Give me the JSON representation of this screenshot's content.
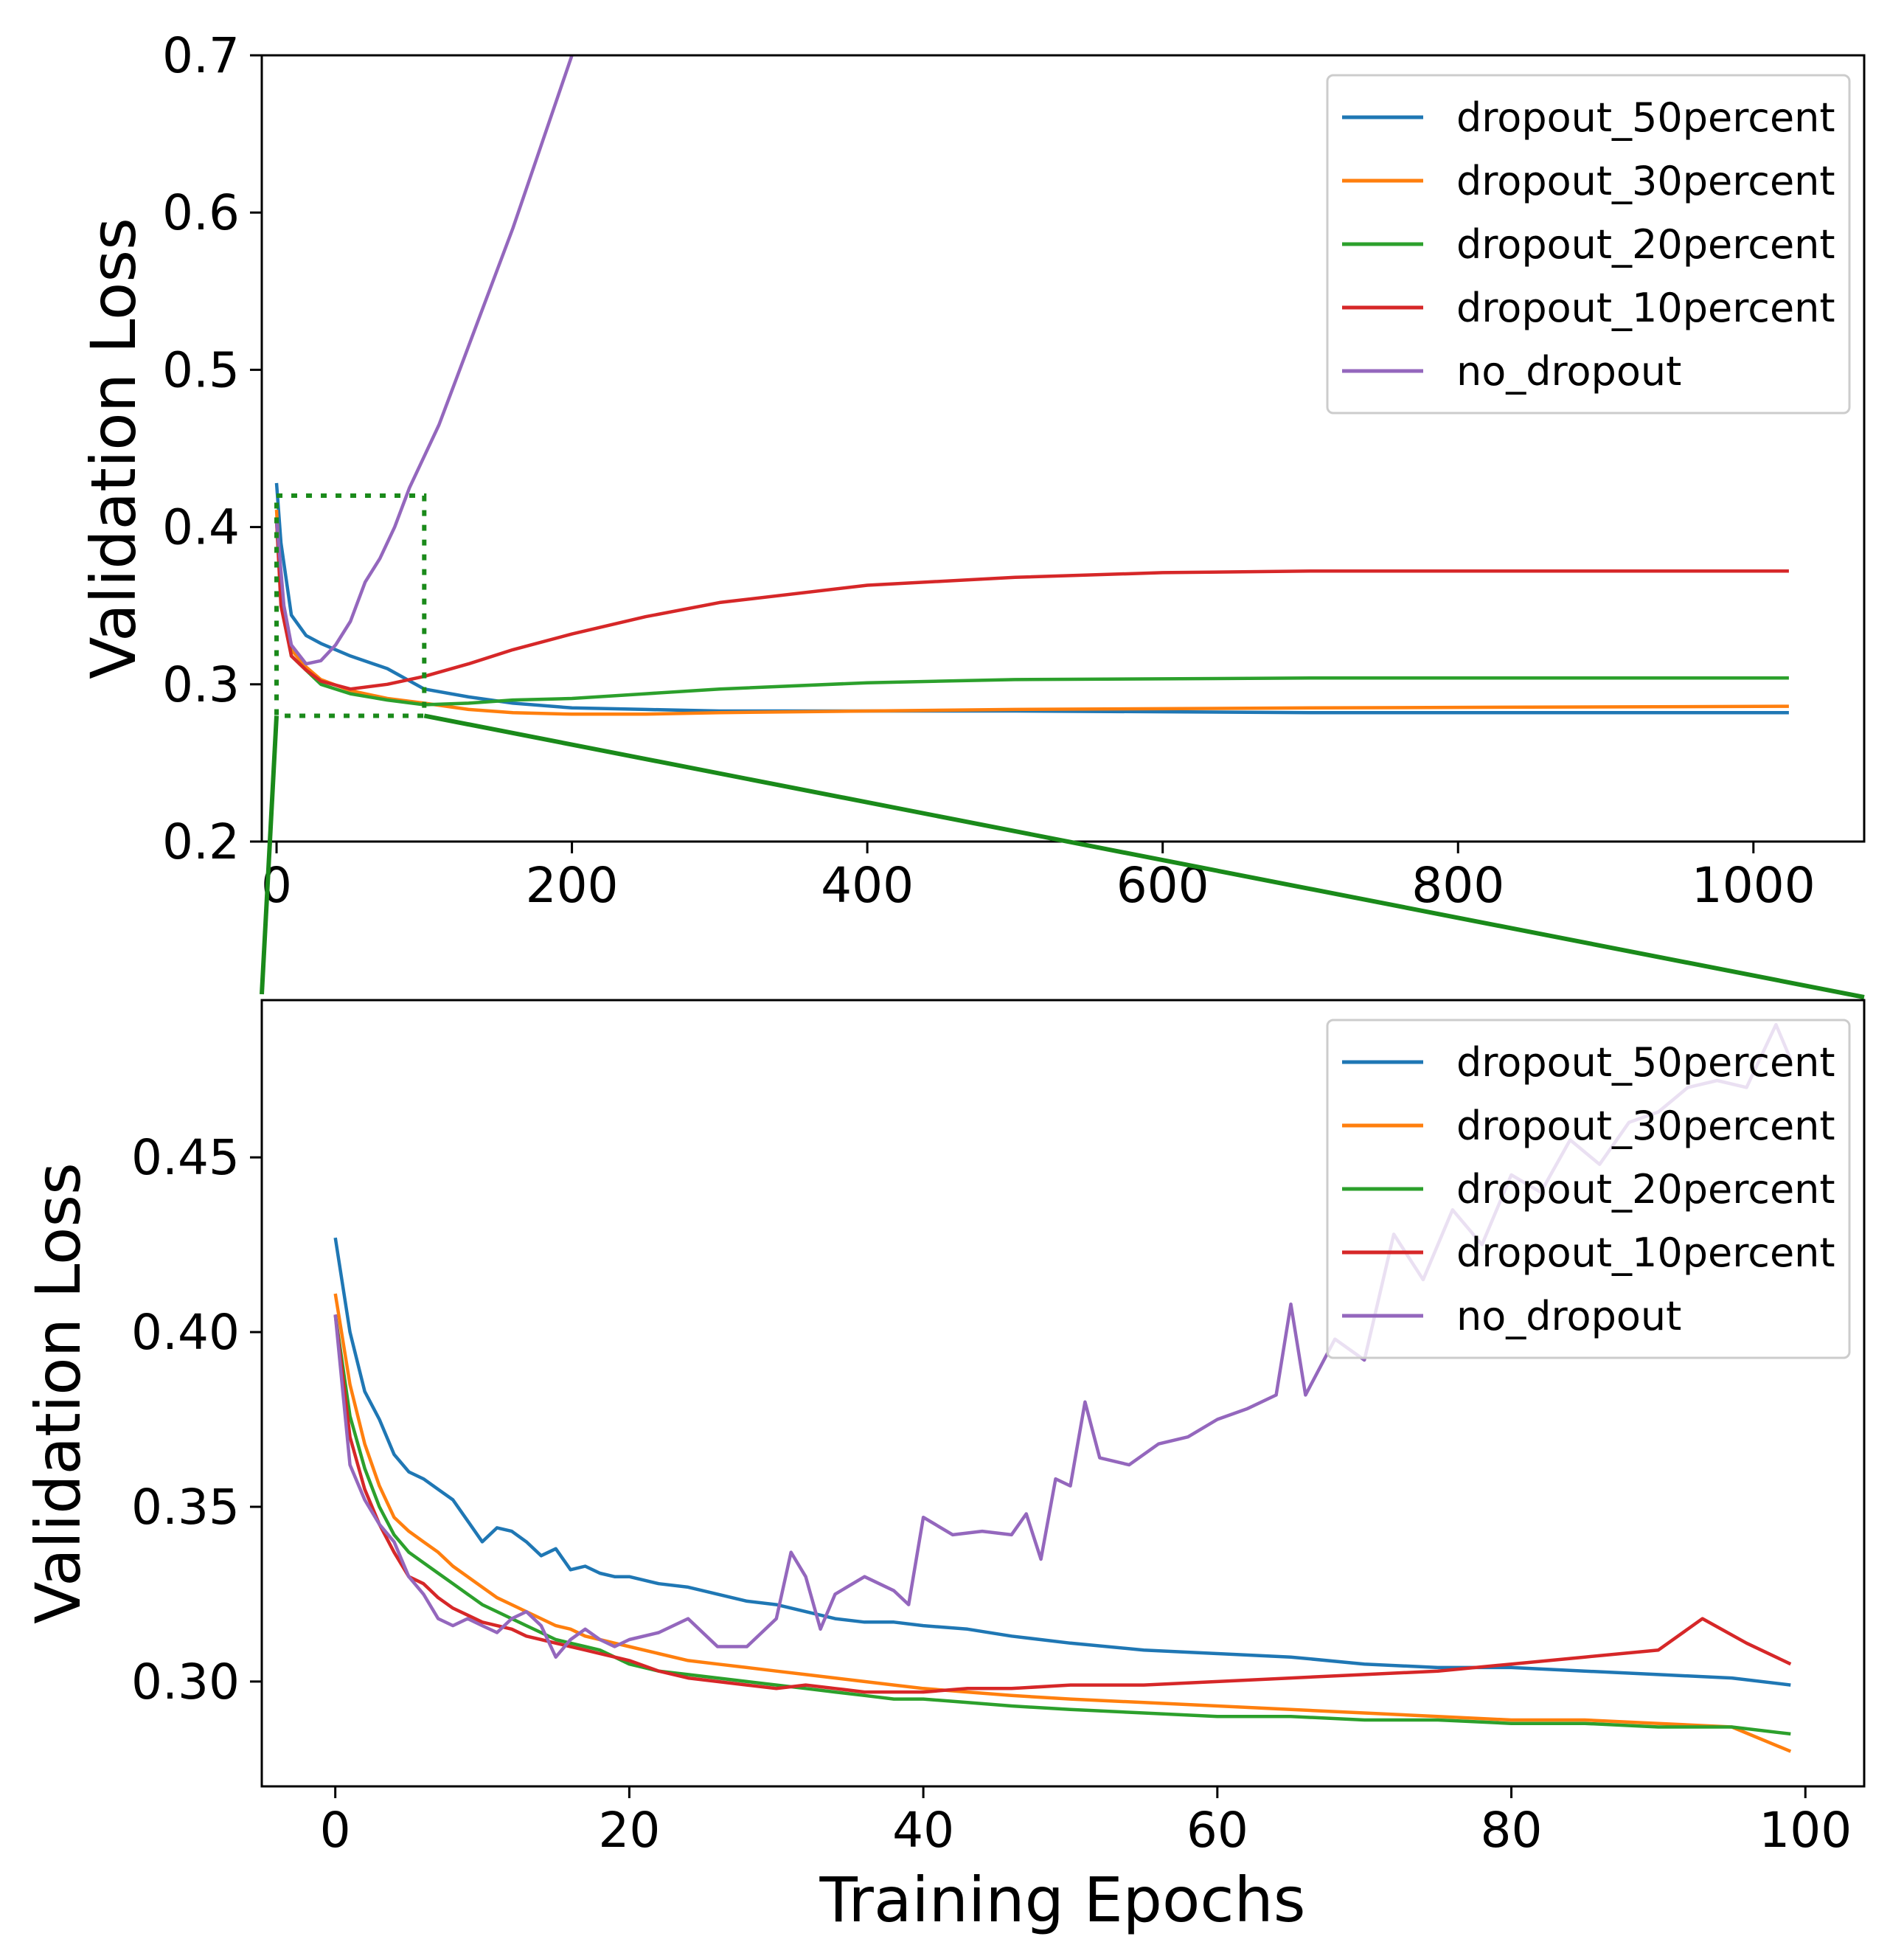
{
  "colors": {
    "dropout_50percent": "#1f77b4",
    "dropout_30percent": "#ff7f0e",
    "dropout_20percent": "#2ca02c",
    "dropout_10percent": "#d62728",
    "no_dropout": "#9467bd",
    "zoom_indicator": "#1a8a1a"
  },
  "chart_data": [
    {
      "type": "line",
      "panel": "top",
      "xlabel": "",
      "ylabel": "Validation Loss",
      "xlim": [
        -10,
        1075
      ],
      "ylim": [
        0.2,
        0.7
      ],
      "xticks": [
        0,
        200,
        400,
        600,
        800,
        1000
      ],
      "xtick_labels": [
        "0",
        "200",
        "400",
        "600",
        "800",
        "1000"
      ],
      "yticks": [
        0.2,
        0.3,
        0.4,
        0.5,
        0.6,
        0.7
      ],
      "ytick_labels": [
        "0.2",
        "0.3",
        "0.4",
        "0.5",
        "0.6",
        "0.7"
      ],
      "legend_position": "top-right",
      "zoom_box": {
        "x": [
          0,
          100
        ],
        "y": [
          0.28,
          0.42
        ]
      },
      "series": [
        {
          "name": "dropout_50percent",
          "key": "dropout_50percent",
          "x": [
            0,
            3,
            10,
            20,
            30,
            50,
            75,
            100,
            130,
            160,
            200,
            250,
            300,
            400,
            500,
            700,
            1024
          ],
          "y": [
            0.428,
            0.39,
            0.344,
            0.331,
            0.326,
            0.318,
            0.31,
            0.297,
            0.292,
            0.288,
            0.285,
            0.284,
            0.283,
            0.283,
            0.283,
            0.282,
            0.282
          ]
        },
        {
          "name": "dropout_30percent",
          "key": "dropout_30percent",
          "x": [
            0,
            3,
            10,
            20,
            30,
            50,
            75,
            100,
            130,
            160,
            200,
            250,
            300,
            400,
            500,
            700,
            1024
          ],
          "y": [
            0.411,
            0.36,
            0.322,
            0.311,
            0.303,
            0.296,
            0.291,
            0.288,
            0.284,
            0.282,
            0.281,
            0.281,
            0.282,
            0.283,
            0.284,
            0.285,
            0.286
          ]
        },
        {
          "name": "dropout_20percent",
          "key": "dropout_20percent",
          "x": [
            0,
            3,
            10,
            20,
            30,
            50,
            75,
            100,
            130,
            160,
            200,
            250,
            300,
            400,
            500,
            700,
            1024
          ],
          "y": [
            0.405,
            0.355,
            0.318,
            0.309,
            0.3,
            0.294,
            0.29,
            0.287,
            0.288,
            0.29,
            0.291,
            0.294,
            0.297,
            0.301,
            0.303,
            0.304,
            0.304
          ]
        },
        {
          "name": "dropout_10percent",
          "key": "dropout_10percent",
          "x": [
            0,
            3,
            10,
            20,
            30,
            50,
            75,
            100,
            130,
            160,
            200,
            250,
            300,
            400,
            500,
            600,
            700,
            1024
          ],
          "y": [
            0.405,
            0.35,
            0.318,
            0.309,
            0.302,
            0.297,
            0.3,
            0.305,
            0.313,
            0.322,
            0.332,
            0.343,
            0.352,
            0.363,
            0.368,
            0.371,
            0.372,
            0.372
          ]
        },
        {
          "name": "no_dropout",
          "key": "no_dropout",
          "x": [
            0,
            5,
            10,
            20,
            30,
            40,
            50,
            60,
            70,
            80,
            90,
            100,
            110,
            120,
            140,
            160,
            180,
            200
          ],
          "y": [
            0.405,
            0.35,
            0.325,
            0.313,
            0.315,
            0.325,
            0.34,
            0.365,
            0.38,
            0.4,
            0.425,
            0.445,
            0.465,
            0.49,
            0.54,
            0.59,
            0.645,
            0.7
          ]
        }
      ]
    },
    {
      "type": "line",
      "panel": "bottom",
      "xlabel": "Training Epochs",
      "ylabel": "Validation Loss",
      "xlim": [
        -5,
        104
      ],
      "ylim": [
        0.27,
        0.495
      ],
      "xticks": [
        0,
        20,
        40,
        60,
        80,
        100
      ],
      "xtick_labels": [
        "0",
        "20",
        "40",
        "60",
        "80",
        "100"
      ],
      "yticks": [
        0.3,
        0.35,
        0.4,
        0.45
      ],
      "ytick_labels": [
        "0.30",
        "0.35",
        "0.40",
        "0.45"
      ],
      "legend_position": "top-right",
      "series": [
        {
          "name": "dropout_50percent",
          "key": "dropout_50percent",
          "x": [
            0,
            1,
            2,
            3,
            4,
            5,
            6,
            7,
            8,
            9,
            10,
            11,
            12,
            13,
            14,
            15,
            16,
            17,
            18,
            19,
            20,
            22,
            24,
            26,
            28,
            30,
            32,
            34,
            36,
            38,
            40,
            43,
            46,
            50,
            55,
            60,
            65,
            70,
            75,
            80,
            85,
            90,
            95,
            99
          ],
          "y": [
            0.427,
            0.4,
            0.383,
            0.375,
            0.365,
            0.36,
            0.358,
            0.355,
            0.352,
            0.346,
            0.34,
            0.344,
            0.343,
            0.34,
            0.336,
            0.338,
            0.332,
            0.333,
            0.331,
            0.33,
            0.33,
            0.328,
            0.327,
            0.325,
            0.323,
            0.322,
            0.32,
            0.318,
            0.317,
            0.317,
            0.316,
            0.315,
            0.313,
            0.311,
            0.309,
            0.308,
            0.307,
            0.305,
            0.304,
            0.304,
            0.303,
            0.302,
            0.301,
            0.299
          ]
        },
        {
          "name": "dropout_30percent",
          "key": "dropout_30percent",
          "x": [
            0,
            1,
            2,
            3,
            4,
            5,
            6,
            7,
            8,
            9,
            10,
            11,
            12,
            13,
            14,
            15,
            16,
            17,
            18,
            19,
            20,
            22,
            24,
            26,
            28,
            30,
            32,
            34,
            36,
            38,
            40,
            43,
            46,
            50,
            55,
            60,
            65,
            70,
            75,
            80,
            85,
            90,
            95,
            99
          ],
          "y": [
            0.411,
            0.385,
            0.368,
            0.356,
            0.347,
            0.343,
            0.34,
            0.337,
            0.333,
            0.33,
            0.327,
            0.324,
            0.322,
            0.32,
            0.318,
            0.316,
            0.315,
            0.313,
            0.312,
            0.311,
            0.31,
            0.308,
            0.306,
            0.305,
            0.304,
            0.303,
            0.302,
            0.301,
            0.3,
            0.299,
            0.298,
            0.297,
            0.296,
            0.295,
            0.294,
            0.293,
            0.292,
            0.291,
            0.29,
            0.289,
            0.289,
            0.288,
            0.287,
            0.28
          ]
        },
        {
          "name": "dropout_20percent",
          "key": "dropout_20percent",
          "x": [
            0,
            1,
            2,
            3,
            4,
            5,
            6,
            7,
            8,
            9,
            10,
            11,
            12,
            13,
            14,
            15,
            16,
            17,
            18,
            19,
            20,
            22,
            24,
            26,
            28,
            30,
            32,
            34,
            36,
            38,
            40,
            43,
            46,
            50,
            55,
            60,
            65,
            70,
            75,
            80,
            85,
            90,
            95,
            99
          ],
          "y": [
            0.405,
            0.376,
            0.361,
            0.35,
            0.342,
            0.337,
            0.334,
            0.331,
            0.328,
            0.325,
            0.322,
            0.32,
            0.318,
            0.316,
            0.314,
            0.312,
            0.311,
            0.31,
            0.309,
            0.307,
            0.305,
            0.303,
            0.302,
            0.301,
            0.3,
            0.299,
            0.298,
            0.297,
            0.296,
            0.295,
            0.295,
            0.294,
            0.293,
            0.292,
            0.291,
            0.29,
            0.29,
            0.289,
            0.289,
            0.288,
            0.288,
            0.287,
            0.287,
            0.285
          ]
        },
        {
          "name": "dropout_10percent",
          "key": "dropout_10percent",
          "x": [
            0,
            1,
            2,
            3,
            4,
            5,
            6,
            7,
            8,
            9,
            10,
            11,
            12,
            13,
            14,
            15,
            16,
            17,
            18,
            19,
            20,
            22,
            24,
            26,
            28,
            30,
            32,
            34,
            36,
            38,
            40,
            43,
            46,
            50,
            55,
            60,
            65,
            70,
            75,
            80,
            85,
            90,
            93,
            96,
            99
          ],
          "y": [
            0.405,
            0.37,
            0.355,
            0.345,
            0.337,
            0.33,
            0.328,
            0.324,
            0.321,
            0.319,
            0.317,
            0.316,
            0.315,
            0.313,
            0.312,
            0.311,
            0.31,
            0.309,
            0.308,
            0.307,
            0.306,
            0.303,
            0.301,
            0.3,
            0.299,
            0.298,
            0.299,
            0.298,
            0.297,
            0.297,
            0.297,
            0.298,
            0.298,
            0.299,
            0.299,
            0.3,
            0.301,
            0.302,
            0.303,
            0.305,
            0.307,
            0.309,
            0.318,
            0.311,
            0.305
          ]
        },
        {
          "name": "no_dropout",
          "key": "no_dropout",
          "x": [
            0,
            1,
            2,
            3,
            4,
            5,
            6,
            7,
            8,
            9,
            10,
            11,
            12,
            13,
            14,
            15,
            16,
            17,
            18,
            19,
            20,
            22,
            24,
            26,
            28,
            30,
            31,
            32,
            33,
            34,
            36,
            38,
            39,
            40,
            42,
            44,
            46,
            47,
            48,
            49,
            50,
            51,
            52,
            54,
            56,
            58,
            60,
            62,
            64,
            65,
            66,
            68,
            70,
            72,
            74,
            76,
            78,
            80,
            82,
            84,
            86,
            88,
            90,
            92,
            94,
            96,
            98,
            99
          ],
          "y": [
            0.405,
            0.362,
            0.352,
            0.345,
            0.34,
            0.33,
            0.325,
            0.318,
            0.316,
            0.318,
            0.316,
            0.314,
            0.318,
            0.32,
            0.316,
            0.307,
            0.312,
            0.315,
            0.312,
            0.31,
            0.312,
            0.314,
            0.318,
            0.31,
            0.31,
            0.318,
            0.337,
            0.33,
            0.315,
            0.325,
            0.33,
            0.326,
            0.322,
            0.347,
            0.342,
            0.343,
            0.342,
            0.348,
            0.335,
            0.358,
            0.356,
            0.38,
            0.364,
            0.362,
            0.368,
            0.37,
            0.375,
            0.378,
            0.382,
            0.408,
            0.382,
            0.398,
            0.392,
            0.428,
            0.415,
            0.435,
            0.425,
            0.445,
            0.44,
            0.455,
            0.448,
            0.46,
            0.463,
            0.47,
            0.472,
            0.47,
            0.488,
            0.478
          ]
        }
      ]
    }
  ]
}
